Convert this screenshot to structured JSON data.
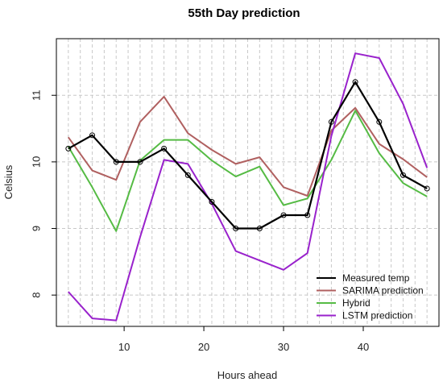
{
  "chart_data": {
    "type": "line",
    "title": "55th Day prediction",
    "xlabel": "Hours ahead",
    "ylabel": "Celsius",
    "xlim": [
      1.5,
      49.5
    ],
    "ylim": [
      7.53,
      11.85
    ],
    "x_ticks": [
      10,
      20,
      30,
      40
    ],
    "y_ticks": [
      8,
      9,
      10,
      11
    ],
    "grid": "vertical dashed lines every 1.5 hours, horizontal dashed at each y tick",
    "legend_position": "bottom-right",
    "x": [
      3,
      6,
      9,
      12,
      15,
      18,
      21,
      24,
      27,
      30,
      33,
      36,
      39,
      42,
      45,
      48
    ],
    "series": [
      {
        "name": "Measured temp",
        "color": "#000000",
        "markers": true,
        "values": [
          10.2,
          10.4,
          10.0,
          10.0,
          10.2,
          9.8,
          9.4,
          9.0,
          9.0,
          9.2,
          9.2,
          10.6,
          11.2,
          10.6,
          9.8,
          9.6
        ]
      },
      {
        "name": "SARIMA prediction",
        "color": "#b06060",
        "markers": false,
        "values": [
          10.37,
          9.87,
          9.73,
          10.6,
          10.98,
          10.43,
          10.18,
          9.97,
          10.07,
          9.62,
          9.49,
          10.47,
          10.81,
          10.27,
          10.04,
          9.77
        ]
      },
      {
        "name": "Hybrid",
        "color": "#55bb44",
        "markers": false,
        "values": [
          10.23,
          9.62,
          8.96,
          10.02,
          10.33,
          10.33,
          10.02,
          9.78,
          9.93,
          9.35,
          9.45,
          10.03,
          10.77,
          10.13,
          9.68,
          9.48
        ]
      },
      {
        "name": "LSTM prediction",
        "color": "#9922cc",
        "markers": false,
        "values": [
          8.05,
          7.65,
          7.62,
          8.87,
          10.03,
          9.97,
          9.37,
          8.66,
          8.52,
          8.38,
          8.63,
          10.39,
          11.63,
          11.56,
          10.87,
          9.91
        ]
      }
    ]
  }
}
